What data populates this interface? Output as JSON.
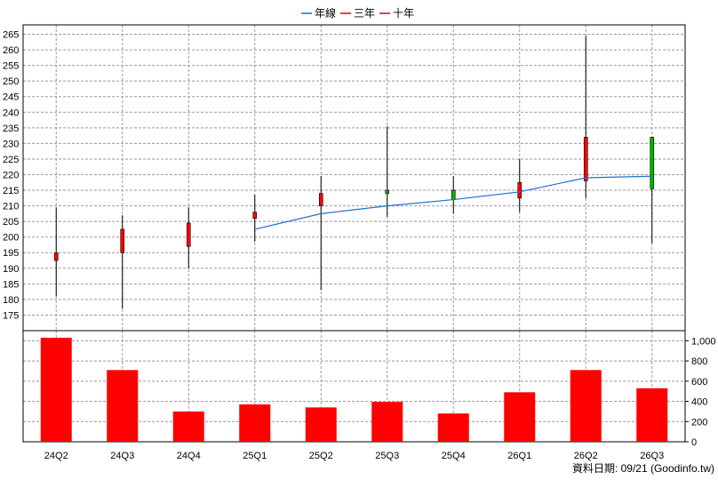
{
  "chart_data": {
    "type": "candlestick+bar",
    "legend": [
      {
        "name": "年線",
        "color": "#1f6fd0",
        "kind": "line"
      },
      {
        "name": "三年",
        "color": "#e00000",
        "kind": "line"
      },
      {
        "name": "十年",
        "color": "#8b1a5a",
        "kind": "line"
      }
    ],
    "legend_position": "top-center",
    "categories": [
      "24Q2",
      "24Q3",
      "24Q4",
      "25Q1",
      "25Q2",
      "25Q3",
      "25Q4",
      "26Q1",
      "26Q2",
      "26Q3"
    ],
    "price_axis": {
      "ylim": [
        170,
        268
      ],
      "ticks": [
        175,
        180,
        185,
        190,
        195,
        200,
        205,
        210,
        215,
        220,
        225,
        230,
        235,
        240,
        245,
        250,
        255,
        260,
        265
      ],
      "grid": true
    },
    "candles": [
      {
        "open": 192.5,
        "high": 209.5,
        "low": 181.0,
        "close": 195.0
      },
      {
        "open": 195.0,
        "high": 207.0,
        "low": 177.0,
        "close": 202.5
      },
      {
        "open": 197.0,
        "high": 209.5,
        "low": 190.0,
        "close": 204.5
      },
      {
        "open": 206.0,
        "high": 213.5,
        "low": 198.5,
        "close": 208.0
      },
      {
        "open": 210.0,
        "high": 219.5,
        "low": 183.0,
        "close": 214.0
      },
      {
        "open": 214.0,
        "high": 235.5,
        "low": 206.5,
        "close": 215.0
      },
      {
        "open": 212.0,
        "high": 219.5,
        "low": 207.5,
        "close": 215.0
      },
      {
        "open": 212.5,
        "high": 225.0,
        "low": 208.0,
        "close": 217.5
      },
      {
        "open": 218.0,
        "high": 264.5,
        "low": 212.5,
        "close": 232.0
      },
      {
        "open": 232.0,
        "high": 232.0,
        "low": 198.0,
        "close": 215.5
      }
    ],
    "candle_colors": {
      "up": "#ff0000",
      "down": "#00b400",
      "wick": "#000000"
    },
    "year_line": {
      "name": "年線",
      "values": [
        null,
        null,
        null,
        202.5,
        207.5,
        210.0,
        212.0,
        214.5,
        219.0,
        219.5
      ]
    },
    "volume_axis": {
      "ylim": [
        0,
        1100
      ],
      "ticks": [
        0,
        200,
        400,
        600,
        800,
        1000
      ],
      "tick_labels": [
        "0",
        "200",
        "400",
        "600",
        "800",
        "1,000"
      ],
      "grid": true
    },
    "volume_color": "#ff0000",
    "volumes": [
      1030,
      710,
      300,
      370,
      340,
      395,
      280,
      490,
      710,
      530
    ]
  },
  "footer": {
    "source": "資料日期: 09/21  (Goodinfo.tw)"
  }
}
